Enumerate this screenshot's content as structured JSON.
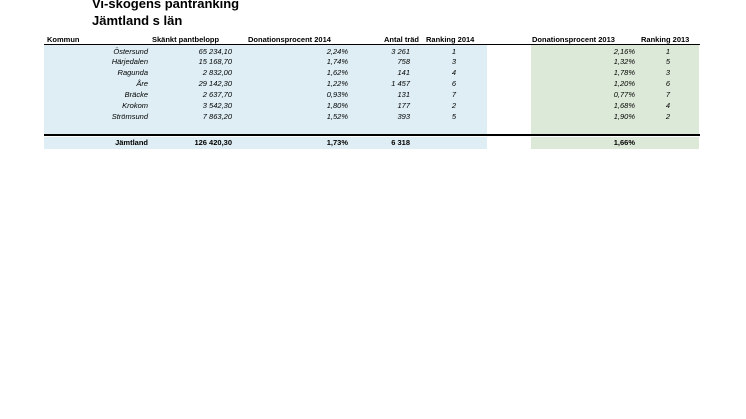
{
  "title_line1": "Vi-skogens pantranking",
  "title_line2": "Jämtland  s län",
  "headers": {
    "kommun": "Kommun",
    "belopp": "Skänkt pantbelopp",
    "don2014": "Donationsprocent 2014",
    "trad": "Antal träd",
    "rank2014": "Ranking 2014",
    "don2013": "Donationsprocent 2013",
    "rank2013": "Ranking 2013"
  },
  "rows": [
    {
      "kommun": "Östersund",
      "belopp": "65 234,10",
      "don2014": "2,24%",
      "trad": "3 261",
      "rank2014": "1",
      "don2013": "2,16%",
      "rank2013": "1"
    },
    {
      "kommun": "Härjedalen",
      "belopp": "15 168,70",
      "don2014": "1,74%",
      "trad": "758",
      "rank2014": "3",
      "don2013": "1,32%",
      "rank2013": "5"
    },
    {
      "kommun": "Ragunda",
      "belopp": "2 832,00",
      "don2014": "1,62%",
      "trad": "141",
      "rank2014": "4",
      "don2013": "1,78%",
      "rank2013": "3"
    },
    {
      "kommun": "Åre",
      "belopp": "29 142,30",
      "don2014": "1,22%",
      "trad": "1 457",
      "rank2014": "6",
      "don2013": "1,20%",
      "rank2013": "6"
    },
    {
      "kommun": "Bräcke",
      "belopp": "2 637,70",
      "don2014": "0,93%",
      "trad": "131",
      "rank2014": "7",
      "don2013": "0,77%",
      "rank2013": "7"
    },
    {
      "kommun": "Krokom",
      "belopp": "3 542,30",
      "don2014": "1,80%",
      "trad": "177",
      "rank2014": "2",
      "don2013": "1,68%",
      "rank2013": "4"
    },
    {
      "kommun": "Strömsund",
      "belopp": "7 863,20",
      "don2014": "1,52%",
      "trad": "393",
      "rank2014": "5",
      "don2013": "1,90%",
      "rank2013": "2"
    }
  ],
  "total": {
    "kommun": "Jämtland",
    "belopp": "126 420,30",
    "don2014": "1,73%",
    "trad": "6 318",
    "don2013": "1,66%"
  }
}
